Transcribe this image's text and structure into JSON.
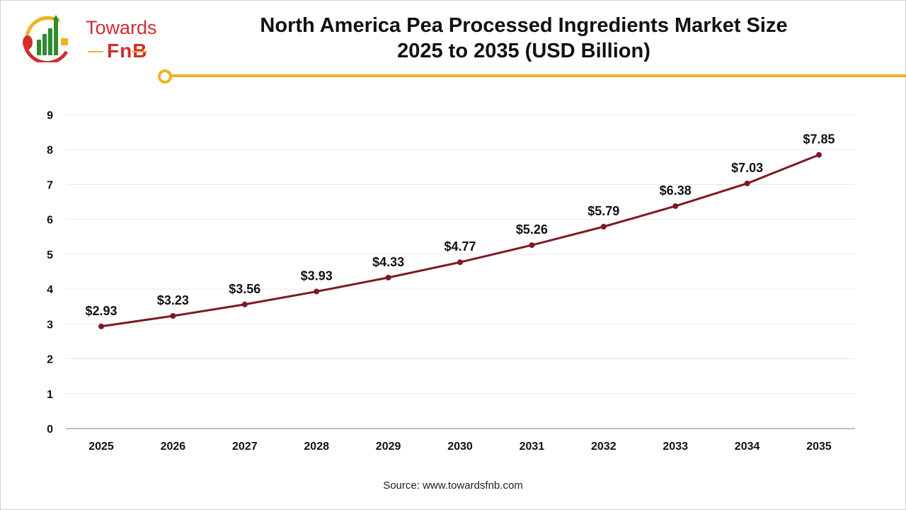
{
  "logo": {
    "line1": "Towards",
    "line2": "FnB"
  },
  "colors": {
    "line": "#7b1a24",
    "accent": "#f0b323",
    "logo_red": "#d12d2d",
    "logo_green": "#2e8b2e",
    "grid": "#e8e8e8",
    "axis": "#bfbfbf"
  },
  "chart_data": {
    "type": "line",
    "title": "North America Pea Processed Ingredients Market Size 2025 to 2035 (USD Billion)",
    "title_lines": [
      "North America Pea Processed Ingredients Market Size",
      "2025 to 2035 (USD Billion)"
    ],
    "categories": [
      "2025",
      "2026",
      "2027",
      "2028",
      "2029",
      "2030",
      "2031",
      "2032",
      "2033",
      "2034",
      "2035"
    ],
    "values": [
      2.93,
      3.23,
      3.56,
      3.93,
      4.33,
      4.77,
      5.26,
      5.79,
      6.38,
      7.03,
      7.85
    ],
    "data_labels": [
      "$2.93",
      "$3.23",
      "$3.56",
      "$3.93",
      "$4.33",
      "$4.77",
      "$5.26",
      "$5.79",
      "$6.38",
      "$7.03",
      "$7.85"
    ],
    "ylim": [
      0,
      9
    ],
    "yticks": [
      "0",
      "1",
      "2",
      "3",
      "4",
      "5",
      "6",
      "7",
      "8",
      "9"
    ],
    "grid": true,
    "xlabel": "",
    "ylabel": ""
  },
  "source": "Source: www.towardsfnb.com"
}
